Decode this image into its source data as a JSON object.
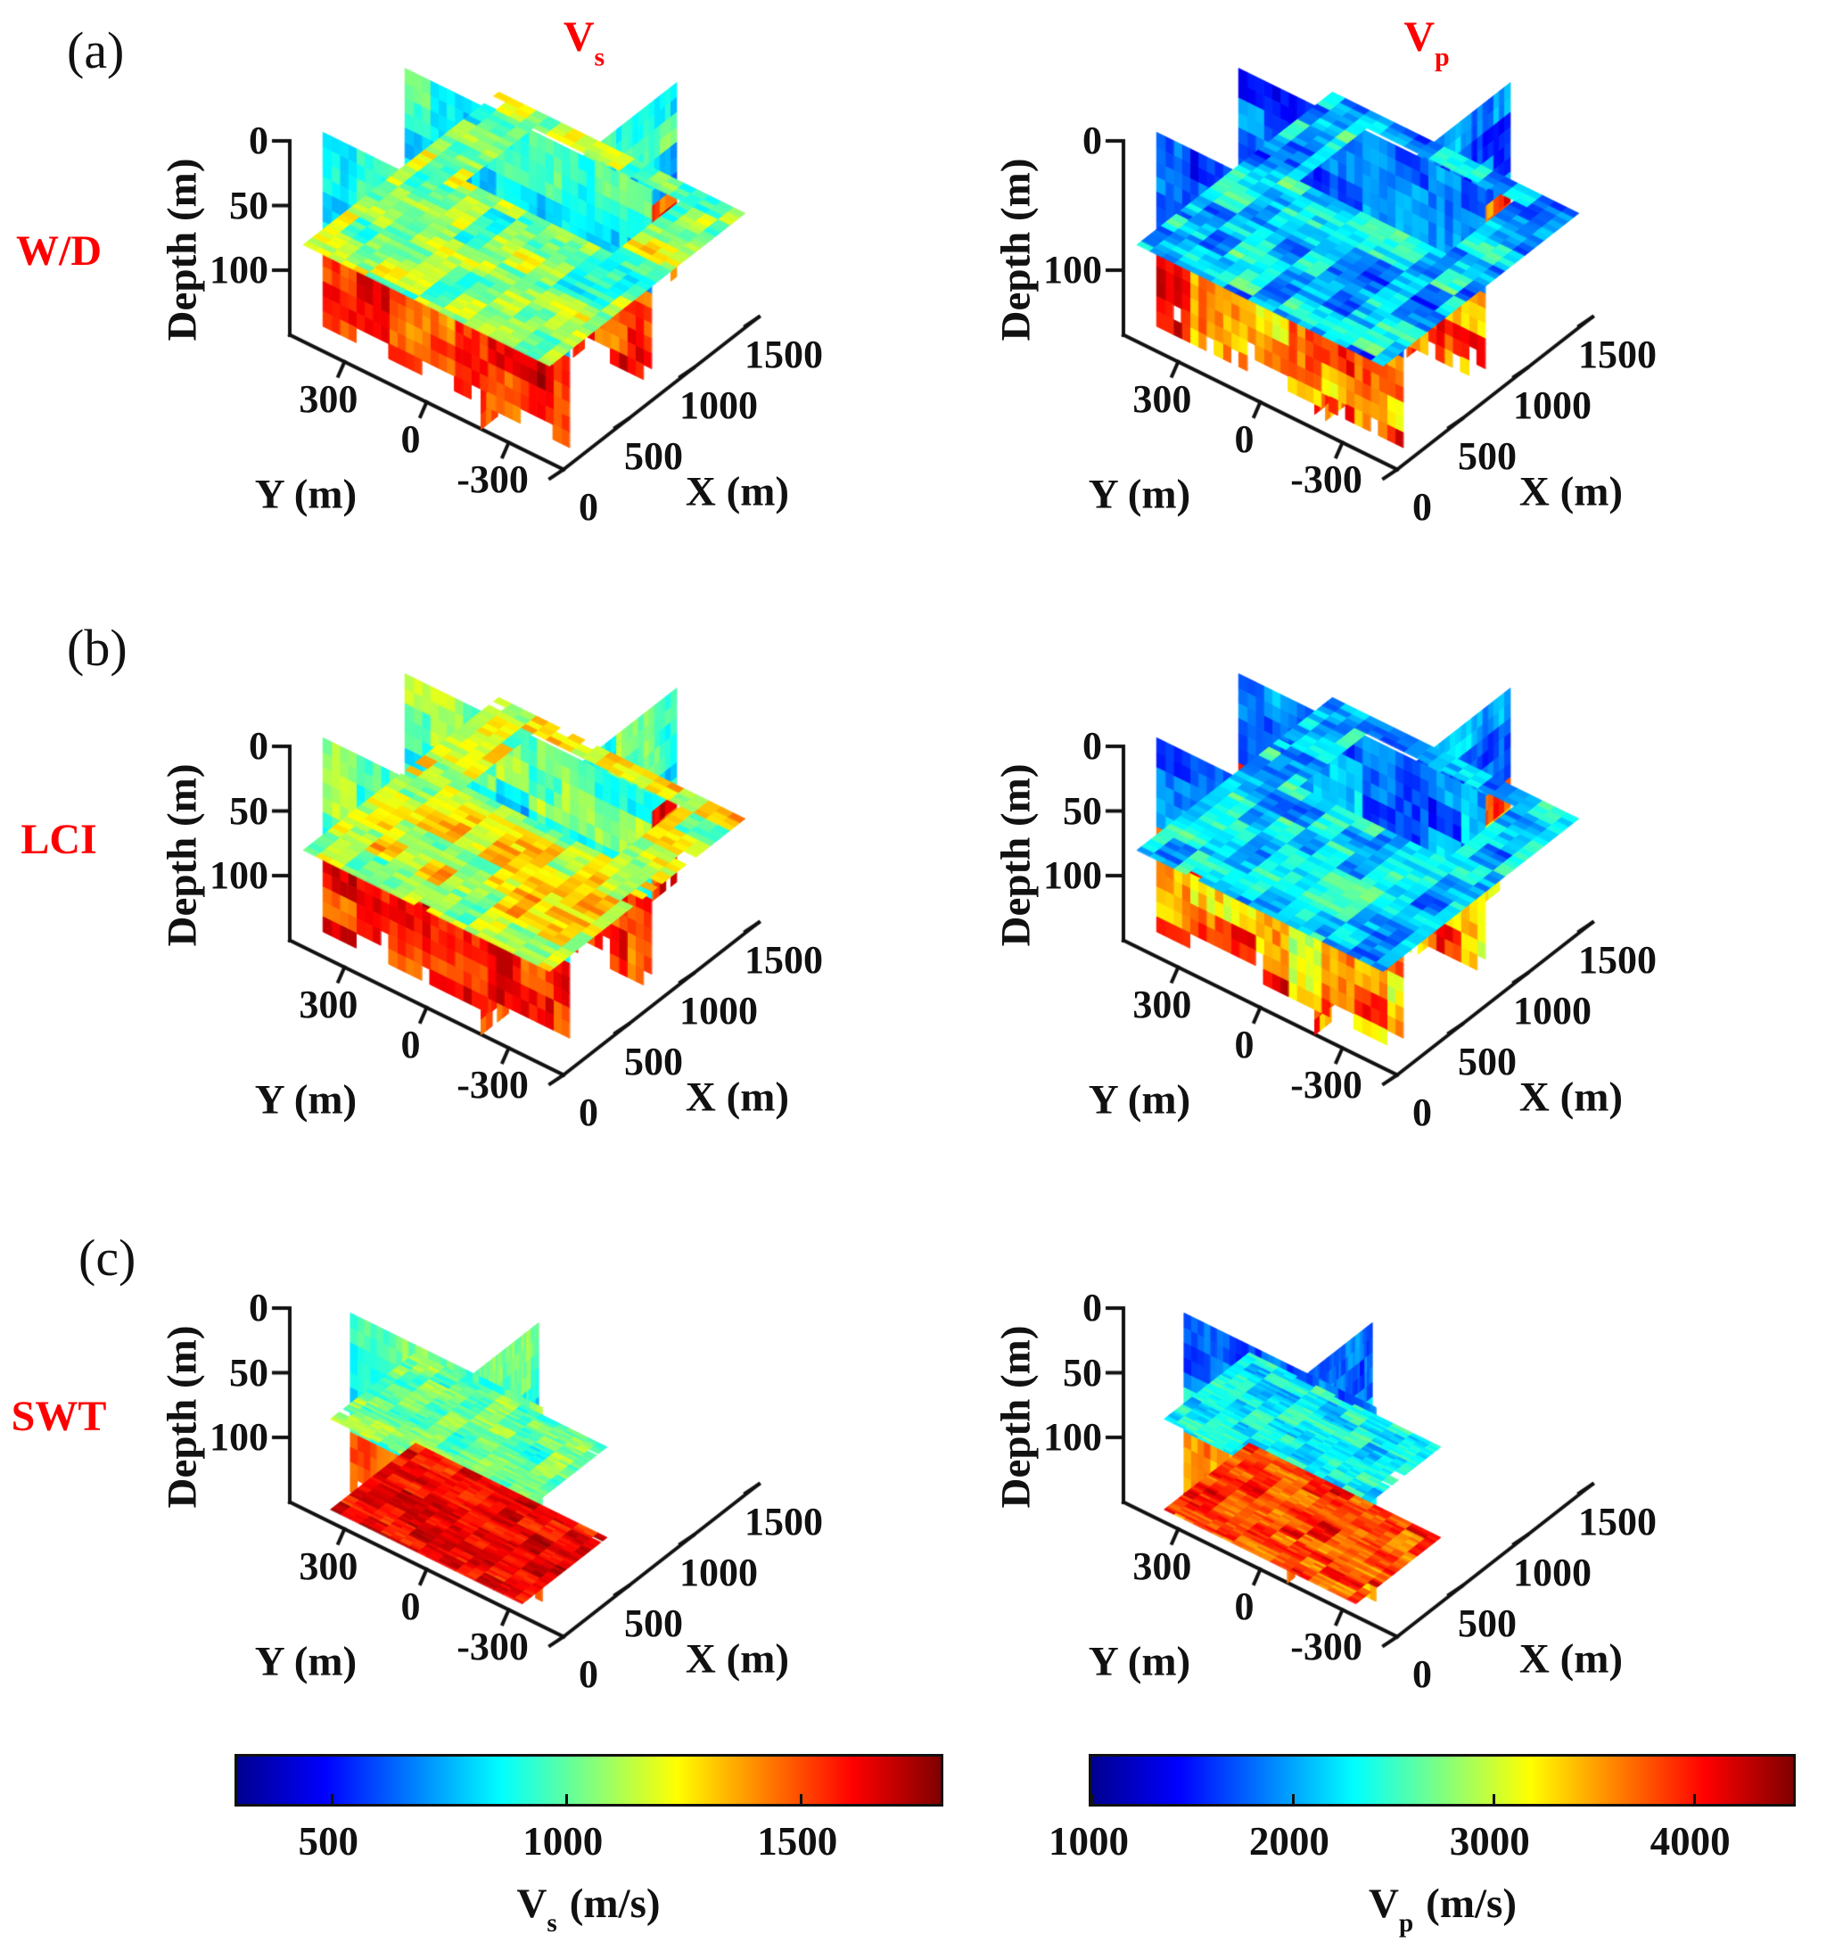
{
  "figure": {
    "rows": [
      {
        "letter": "(a)",
        "label": "W/D"
      },
      {
        "letter": "(b)",
        "label": "LCI"
      },
      {
        "letter": "(c)",
        "label": "SWT"
      }
    ],
    "column_titles": [
      {
        "main": "V",
        "sub": "s"
      },
      {
        "main": "V",
        "sub": "p"
      }
    ],
    "label_color": "#fe0000",
    "axis_color": "#111111",
    "background": "#ffffff"
  },
  "axes": {
    "depth_label": "Depth (m)",
    "y_label": "Y (m)",
    "x_label": "X (m)",
    "x_ticks": [
      0,
      500,
      1000,
      1500
    ],
    "y_ticks": [
      300,
      0,
      -300
    ],
    "depth_ticks_default": [
      0,
      50,
      100
    ],
    "x_range": [
      0,
      1500
    ],
    "y_range": [
      -500,
      500
    ],
    "depth_range": [
      0,
      150
    ]
  },
  "colorbars": [
    {
      "quantity": "Vs",
      "label": {
        "main": "V",
        "sub": "s",
        "units": "(m/s)"
      },
      "ticks": [
        500,
        1000,
        1500
      ],
      "range": [
        300,
        1800
      ],
      "colormap": "jet"
    },
    {
      "quantity": "Vp",
      "label": {
        "main": "V",
        "sub": "p",
        "units": "(m/s)"
      },
      "ticks": [
        1000,
        2000,
        3000,
        4000
      ],
      "range": [
        1000,
        4500
      ],
      "colormap": "jet"
    }
  ],
  "chart_data": {
    "type": "heatmap",
    "subtype": "3d-fence-slice-view",
    "colormap": "jet",
    "view": {
      "note": "MATLAB-style 3D slice view, depth axis pointing down"
    },
    "panels": [
      {
        "id": "a-vs",
        "row": "W/D",
        "letter": "(a)",
        "quantity": "Vs",
        "colorbar": 0,
        "extent": "full",
        "seed": 11,
        "depth_ticks": [
          0,
          50,
          100
        ],
        "layers": [
          {
            "depth": [
              0,
              50
            ],
            "velocity": [
              700,
              1150
            ]
          },
          {
            "depth": [
              50,
              82
            ],
            "velocity": [
              550,
              950
            ]
          },
          {
            "depth": [
              82,
              150
            ],
            "velocity": [
              1300,
              1800
            ]
          }
        ],
        "slice_depth": 75,
        "slice_velocity": [
          750,
          1400
        ]
      },
      {
        "id": "a-vp",
        "row": "W/D",
        "letter": "(a)",
        "quantity": "Vp",
        "colorbar": 1,
        "extent": "full",
        "seed": 22,
        "depth_ticks": [
          0,
          100
        ],
        "layers": [
          {
            "depth": [
              0,
              80
            ],
            "velocity": [
              1250,
              2300
            ]
          },
          {
            "depth": [
              80,
              150
            ],
            "velocity": [
              2900,
              4400
            ]
          }
        ],
        "slice_depth": 75,
        "slice_velocity": [
          1400,
          2900
        ]
      },
      {
        "id": "b-vs",
        "row": "LCI",
        "letter": "(b)",
        "quantity": "Vs",
        "colorbar": 0,
        "extent": "full",
        "seed": 33,
        "depth_ticks": [
          0,
          50,
          100
        ],
        "layers": [
          {
            "depth": [
              0,
              55
            ],
            "velocity": [
              750,
              1250
            ]
          },
          {
            "depth": [
              55,
              82
            ],
            "velocity": [
              650,
              1050
            ]
          },
          {
            "depth": [
              82,
              150
            ],
            "velocity": [
              1300,
              1800
            ]
          }
        ],
        "slice_depth": 75,
        "slice_velocity": [
          850,
          1500
        ]
      },
      {
        "id": "b-vp",
        "row": "LCI",
        "letter": "(b)",
        "quantity": "Vp",
        "colorbar": 1,
        "extent": "full",
        "seed": 44,
        "depth_ticks": [
          0,
          50,
          100
        ],
        "layers": [
          {
            "depth": [
              0,
              75
            ],
            "velocity": [
              1300,
              2500
            ]
          },
          {
            "depth": [
              75,
              150
            ],
            "velocity": [
              2700,
              4400
            ]
          }
        ],
        "slice_depth": 75,
        "slice_velocity": [
          1500,
          2900
        ]
      },
      {
        "id": "c-vs",
        "row": "SWT",
        "letter": "(c)",
        "quantity": "Vs",
        "colorbar": 0,
        "extent": "compact",
        "seed": 55,
        "depth_ticks": [
          0,
          50,
          100
        ],
        "layers": [
          {
            "depth": [
              0,
              60
            ],
            "velocity": [
              800,
              1150
            ]
          },
          {
            "depth": [
              60,
              95
            ],
            "velocity": [
              700,
              1100
            ]
          },
          {
            "depth": [
              95,
              150
            ],
            "velocity": [
              1350,
              1750
            ]
          }
        ],
        "slice_depth": 70,
        "slice_velocity": [
          800,
          1250
        ],
        "slice2_depth": 140,
        "slice2_velocity": [
          1450,
          1800
        ]
      },
      {
        "id": "c-vp",
        "row": "SWT",
        "letter": "(c)",
        "quantity": "Vp",
        "colorbar": 1,
        "extent": "compact",
        "seed": 66,
        "depth_ticks": [
          0,
          50,
          100
        ],
        "layers": [
          {
            "depth": [
              0,
              55
            ],
            "velocity": [
              1400,
              2200
            ]
          },
          {
            "depth": [
              55,
              95
            ],
            "velocity": [
              1800,
              2800
            ]
          },
          {
            "depth": [
              95,
              150
            ],
            "velocity": [
              3100,
              4300
            ]
          }
        ],
        "slice_depth": 70,
        "slice_velocity": [
          1800,
          2800
        ],
        "slice2_depth": 140,
        "slice2_velocity": [
          3300,
          4400
        ]
      }
    ]
  }
}
